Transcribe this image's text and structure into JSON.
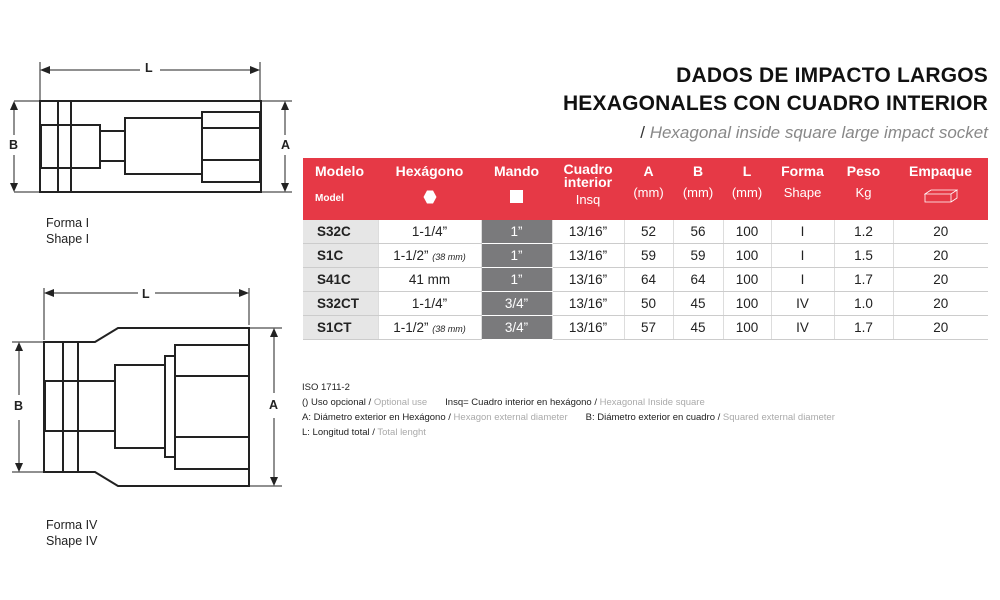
{
  "title_line1": "DADOS DE IMPACTO LARGOS",
  "title_line2": "HEXAGONALES CON CUADRO INTERIOR",
  "subtitle_sep": "/",
  "subtitle": "Hexagonal inside square large impact socket",
  "accent_color": "#e63946",
  "drawings": [
    {
      "label_es": "Forma I",
      "label_en": "Shape I",
      "dim_L": "L",
      "dim_A": "A",
      "dim_B": "B"
    },
    {
      "label_es": "Forma IV",
      "label_en": "Shape IV",
      "dim_L": "L",
      "dim_A": "A",
      "dim_B": "B"
    }
  ],
  "table": {
    "headers": [
      {
        "top": "Modelo",
        "bottom": "Model"
      },
      {
        "top": "Hexágono",
        "icon": "hexagon-icon"
      },
      {
        "top": "Mando",
        "icon": "square-icon"
      },
      {
        "top": "Cuadro interior",
        "bottom": "Insq"
      },
      {
        "top": "A",
        "bottom": "(mm)"
      },
      {
        "top": "B",
        "bottom": "(mm)"
      },
      {
        "top": "L",
        "bottom": "(mm)"
      },
      {
        "top": "Forma",
        "bottom": "Shape"
      },
      {
        "top": "Peso",
        "bottom": "Kg"
      },
      {
        "top": "Empaque",
        "icon": "box-icon"
      }
    ],
    "rows": [
      {
        "model": "S32C",
        "hex": "1-1/4”",
        "hex_opt": "",
        "drive": "1”",
        "insq": "13/16”",
        "a": "52",
        "b": "56",
        "l": "100",
        "shape": "I",
        "kg": "1.2",
        "pack": "20"
      },
      {
        "model": "S1C",
        "hex": "1-1/2”",
        "hex_opt": "(38 mm)",
        "drive": "1”",
        "insq": "13/16”",
        "a": "59",
        "b": "59",
        "l": "100",
        "shape": "I",
        "kg": "1.5",
        "pack": "20"
      },
      {
        "model": "S41C",
        "hex": "41 mm",
        "hex_opt": "",
        "drive": "1”",
        "insq": "13/16”",
        "a": "64",
        "b": "64",
        "l": "100",
        "shape": "I",
        "kg": "1.7",
        "pack": "20"
      },
      {
        "model": "S32CT",
        "hex": "1-1/4”",
        "hex_opt": "",
        "drive": "3/4”",
        "insq": "13/16”",
        "a": "50",
        "b": "45",
        "l": "100",
        "shape": "IV",
        "kg": "1.0",
        "pack": "20"
      },
      {
        "model": "S1CT",
        "hex": "1-1/2”",
        "hex_opt": "(38 mm)",
        "drive": "3/4”",
        "insq": "13/16”",
        "a": "57",
        "b": "45",
        "l": "100",
        "shape": "IV",
        "kg": "1.7",
        "pack": "20"
      }
    ]
  },
  "notes": {
    "standard": "ISO 1711-2",
    "n1_es": "() Uso opcional / ",
    "n1_en": "Optional use",
    "n2_es": "Insq= Cuadro interior en hexágono / ",
    "n2_en": "Hexagonal Inside square",
    "n3_es": "A: Diámetro exterior en Hexágono / ",
    "n3_en": "Hexagon external diameter",
    "n4_es": "B: Diámetro exterior en cuadro / ",
    "n4_en": "Squared external diameter",
    "n5_es": "L: Longitud total / ",
    "n5_en": "Total lenght"
  }
}
